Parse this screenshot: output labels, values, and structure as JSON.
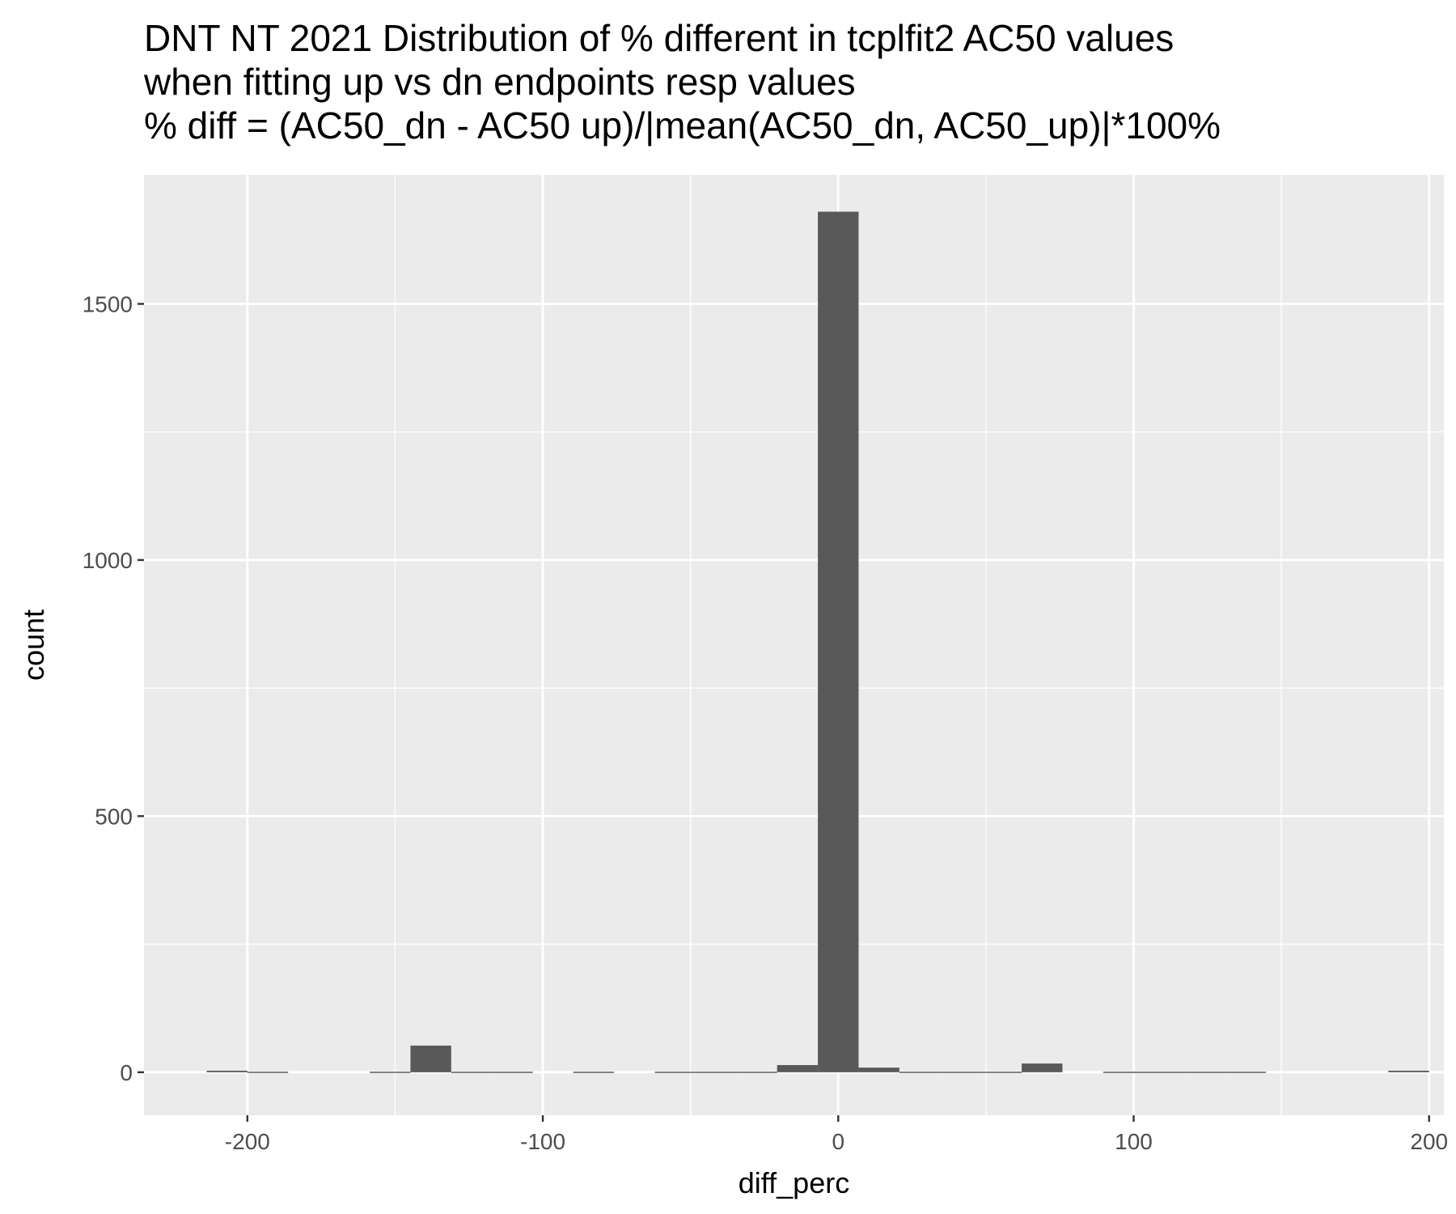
{
  "chart_data": {
    "type": "bar",
    "title_lines": [
      "DNT NT 2021 Distribution of % different in tcplfit2 AC50 values",
      "when fitting up vs dn endpoints resp values",
      "% diff = (AC50_dn - AC50 up)/|mean(AC50_dn, AC50_up)|*100%"
    ],
    "xlabel": "diff_perc",
    "ylabel": "count",
    "xlim": [
      -235,
      205
    ],
    "ylim": [
      -84,
      1752
    ],
    "x_ticks": [
      -200,
      -100,
      0,
      100,
      200
    ],
    "x_tick_labels": [
      "-200",
      "-100",
      "0",
      "100",
      "200"
    ],
    "y_ticks": [
      0,
      500,
      1000,
      1500
    ],
    "y_tick_labels": [
      "0",
      "500",
      "1000",
      "1500"
    ],
    "y_minor_ticks": [
      250,
      750,
      1250
    ],
    "x_minor_ticks": [
      -150,
      -50,
      50,
      150
    ],
    "grid": true,
    "bin_width": 13.79,
    "bins": [
      {
        "x": -206.9,
        "count": 3
      },
      {
        "x": -193.1,
        "count": 1
      },
      {
        "x": -151.7,
        "count": 1
      },
      {
        "x": -137.9,
        "count": 52
      },
      {
        "x": -124.1,
        "count": 1
      },
      {
        "x": -110.3,
        "count": 1
      },
      {
        "x": -82.8,
        "count": 1
      },
      {
        "x": -55.2,
        "count": 1
      },
      {
        "x": -41.4,
        "count": 1
      },
      {
        "x": -27.6,
        "count": 1
      },
      {
        "x": -13.8,
        "count": 14
      },
      {
        "x": 0,
        "count": 1680
      },
      {
        "x": 13.8,
        "count": 9
      },
      {
        "x": 27.6,
        "count": 1
      },
      {
        "x": 41.4,
        "count": 1
      },
      {
        "x": 55.2,
        "count": 1
      },
      {
        "x": 69.0,
        "count": 17
      },
      {
        "x": 96.6,
        "count": 1
      },
      {
        "x": 110.3,
        "count": 1
      },
      {
        "x": 124.1,
        "count": 1
      },
      {
        "x": 137.9,
        "count": 1
      },
      {
        "x": 193.1,
        "count": 3
      }
    ],
    "colors": {
      "panel": "#ebebeb",
      "grid_major": "#ffffff",
      "bar": "#595959",
      "tick": "#333333"
    }
  }
}
